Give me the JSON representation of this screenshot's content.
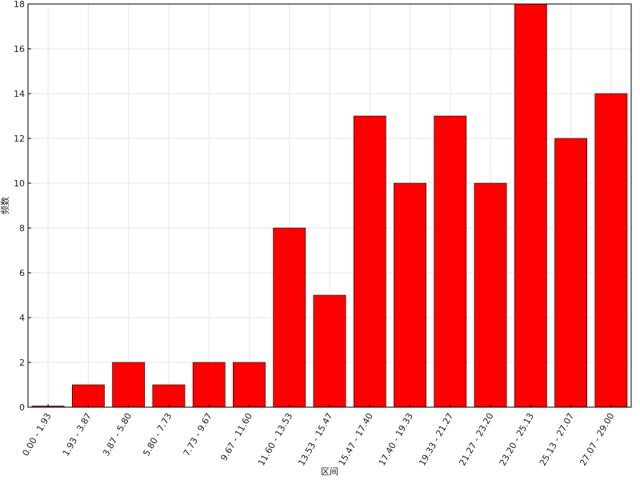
{
  "chart_data": {
    "type": "bar",
    "title": "",
    "xlabel": "区间",
    "ylabel": "频数",
    "categories": [
      "0.00 - 1.93",
      "1.93 - 3.87",
      "3.87 - 5.80",
      "5.80 - 7.73",
      "7.73 - 9.67",
      "9.67 - 11.60",
      "11.60 - 13.53",
      "13.53 - 15.47",
      "15.47 - 17.40",
      "17.40 - 19.33",
      "19.33 - 21.27",
      "21.27 - 23.20",
      "23.20 - 25.13",
      "25.13 - 27.07",
      "27.07 - 29.00"
    ],
    "values": [
      0.05,
      1,
      2,
      1,
      2,
      2,
      8,
      5,
      13,
      10,
      13,
      10,
      18,
      12,
      14
    ],
    "ylim": [
      0,
      18
    ],
    "yticks": [
      0,
      2,
      4,
      6,
      8,
      10,
      12,
      14,
      16,
      18
    ],
    "grid": true,
    "legend": "none",
    "bar_color": "#ff0000",
    "edge_color": "#000000"
  }
}
